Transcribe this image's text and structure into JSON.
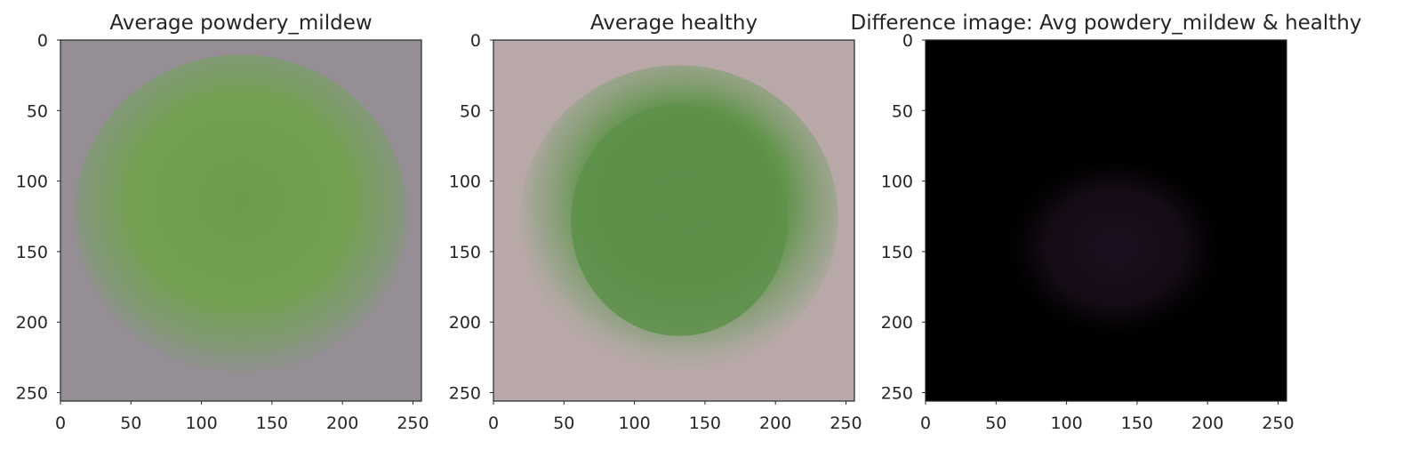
{
  "chart_data": [
    {
      "type": "image",
      "title": "Average powdery_mildew",
      "xlim": [
        0,
        256
      ],
      "ylim": [
        256,
        0
      ],
      "xticks": [
        0,
        50,
        100,
        150,
        200,
        250
      ],
      "yticks": [
        0,
        50,
        100,
        150,
        200,
        250
      ],
      "grid": false,
      "background": "#958f95",
      "subject_color": "#6c9a4c"
    },
    {
      "type": "image",
      "title": "Average healthy",
      "xlim": [
        0,
        256
      ],
      "ylim": [
        256,
        0
      ],
      "xticks": [
        0,
        50,
        100,
        150,
        200,
        250
      ],
      "yticks": [
        0,
        50,
        100,
        150,
        200,
        250
      ],
      "grid": false,
      "background": "#b8a9a8",
      "subject_color": "#5d914a"
    },
    {
      "type": "image",
      "title": "Difference image: Avg powdery_mildew & healthy",
      "xlim": [
        0,
        256
      ],
      "ylim": [
        256,
        0
      ],
      "xticks": [
        0,
        50,
        100,
        150,
        200,
        250
      ],
      "yticks": [
        0,
        50,
        100,
        150,
        200,
        250
      ],
      "grid": false,
      "background": "#000000",
      "subject_color": "#1a0f1c"
    }
  ]
}
